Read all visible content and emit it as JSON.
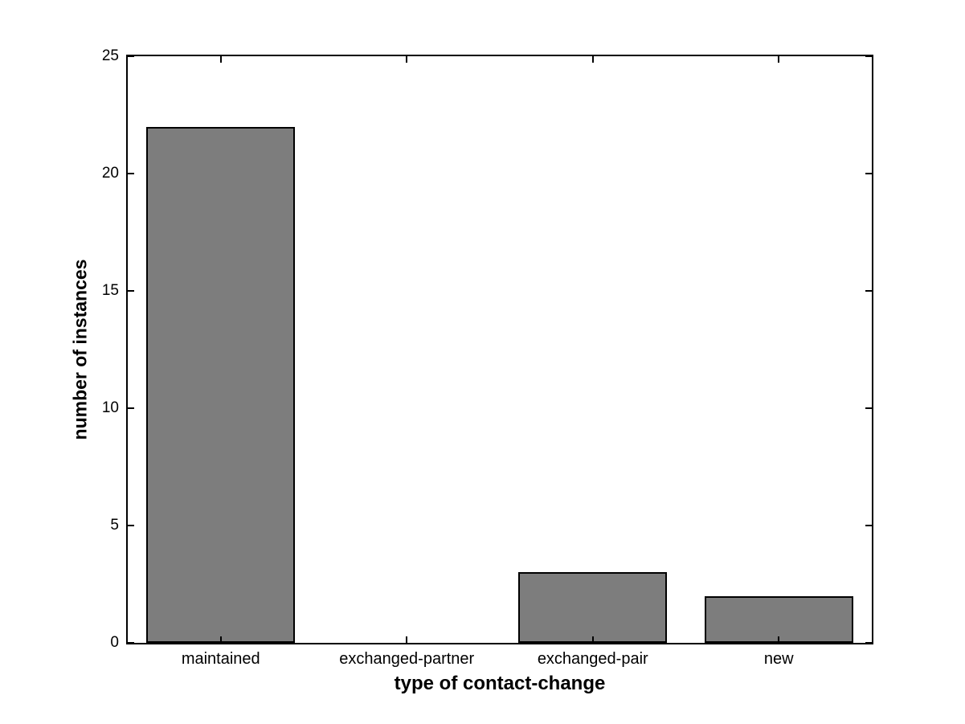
{
  "figure": {
    "background_color": "#ffffff",
    "axis_color": "#000000"
  },
  "chart_data": {
    "type": "bar",
    "title": "",
    "xlabel": "type of contact-change",
    "ylabel": "number of instances",
    "categories": [
      "maintained",
      "exchanged-partner",
      "exchanged-pair",
      "new"
    ],
    "values": [
      22,
      0,
      3,
      2
    ],
    "ylim": [
      0,
      25
    ],
    "y_ticks": [
      0,
      5,
      10,
      15,
      20,
      25
    ],
    "y_tick_labels": [
      "0",
      "5",
      "10",
      "15",
      "20",
      "25"
    ],
    "bar_color": "#7d7d7d",
    "bar_edge_color": "#000000",
    "bar_width_fraction": 0.8,
    "grid": false,
    "legend": null,
    "box": true,
    "tick_direction": "in"
  }
}
